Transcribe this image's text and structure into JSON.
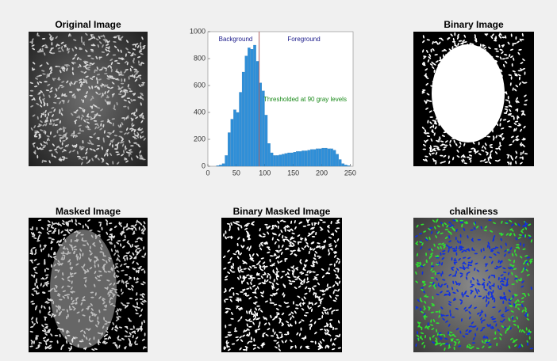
{
  "panels": [
    {
      "title": "Original Image"
    },
    {
      "title": "Binary Image"
    },
    {
      "title": "Masked Image"
    },
    {
      "title": "Binary Masked Image"
    },
    {
      "title": "chalkiness"
    }
  ],
  "chart_data": {
    "type": "histogram",
    "bins": [
      0,
      5,
      10,
      15,
      20,
      25,
      30,
      35,
      40,
      45,
      50,
      55,
      60,
      65,
      70,
      75,
      80,
      85,
      90,
      95,
      100,
      105,
      110,
      115,
      120,
      125,
      130,
      135,
      140,
      145,
      150,
      155,
      160,
      165,
      170,
      175,
      180,
      185,
      190,
      195,
      200,
      205,
      210,
      215,
      220,
      225,
      230,
      235,
      240,
      245,
      250,
      255
    ],
    "values": [
      0,
      0,
      0,
      5,
      10,
      20,
      80,
      250,
      350,
      420,
      400,
      550,
      700,
      820,
      880,
      870,
      900,
      780,
      620,
      560,
      380,
      170,
      100,
      80,
      80,
      85,
      90,
      95,
      100,
      100,
      105,
      110,
      110,
      115,
      115,
      120,
      125,
      125,
      130,
      130,
      135,
      135,
      130,
      130,
      120,
      90,
      50,
      20,
      10,
      5,
      0
    ],
    "color": "#2f8fd8",
    "threshold": 90,
    "threshold_color": "#b06060",
    "xlim": [
      0,
      255
    ],
    "xticks": [
      0,
      50,
      100,
      150,
      200,
      250
    ],
    "ylim": [
      0,
      1000
    ],
    "yticks": [
      0,
      200,
      400,
      600,
      800,
      1000
    ],
    "annotations": [
      "Background",
      "Foreground",
      "Thresholded at 90 gray levels"
    ]
  }
}
